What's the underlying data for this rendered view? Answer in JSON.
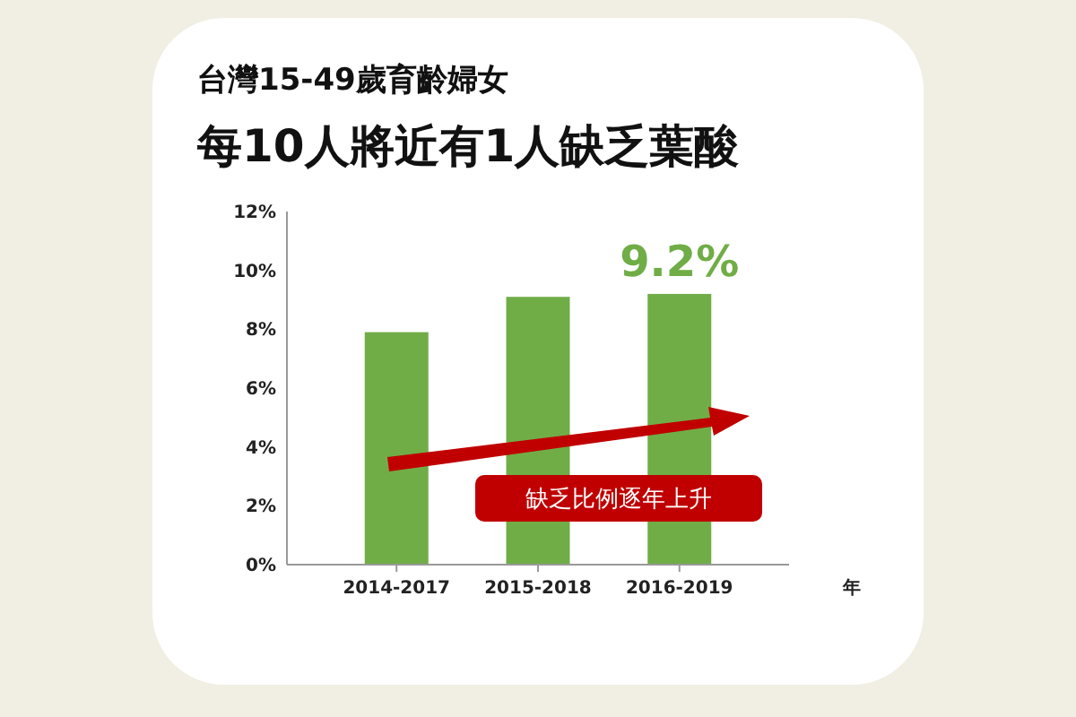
{
  "chart_data": {
    "type": "bar",
    "title": "台灣15-49歲育齡婦女",
    "subtitle": "每10人將近有1人缺乏葉酸",
    "xlabel": "年",
    "categories": [
      "2014-2017",
      "2015-2018",
      "2016-2019"
    ],
    "values": [
      7.9,
      9.1,
      9.2
    ],
    "color": "#70ad47",
    "value_labels": [
      null,
      null,
      "9.2%"
    ],
    "ylim": [
      0,
      12
    ],
    "yticks": [
      {
        "value": 0,
        "label": "0%"
      },
      {
        "value": 2,
        "label": "2%"
      },
      {
        "value": 4,
        "label": "4%"
      },
      {
        "value": 6,
        "label": "6%"
      },
      {
        "value": 8,
        "label": "8%"
      },
      {
        "value": 10,
        "label": "10%"
      },
      {
        "value": 12,
        "label": "12%"
      }
    ],
    "annotations": [
      "缺乏比例逐年上升"
    ],
    "grid": false
  }
}
